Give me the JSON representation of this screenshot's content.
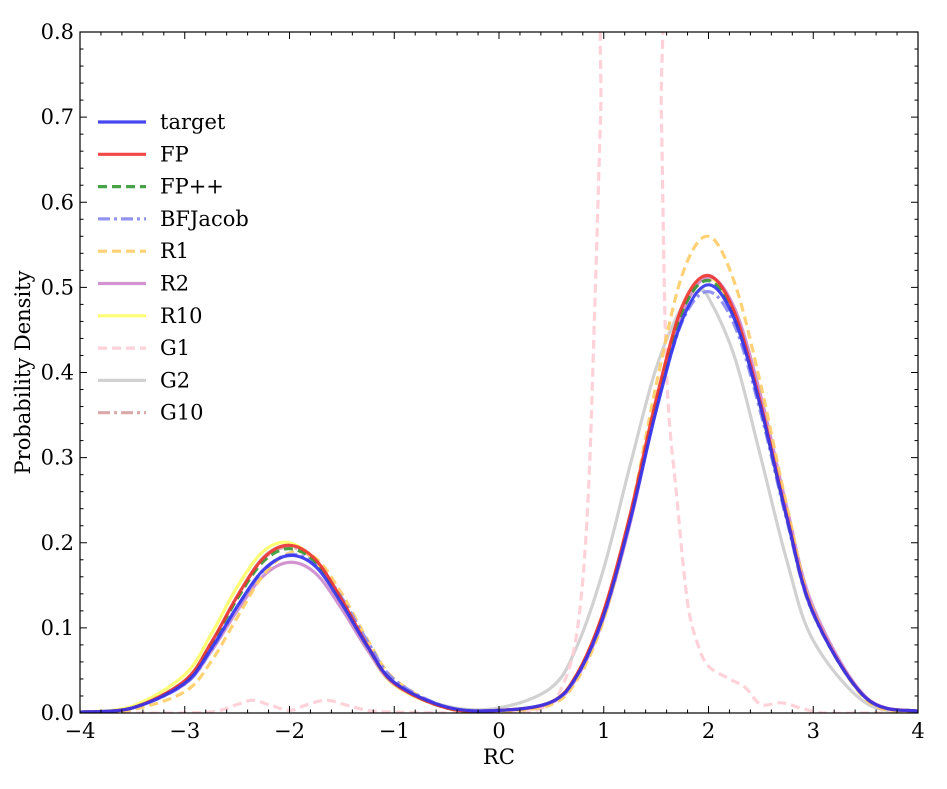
{
  "chart_data": {
    "type": "line",
    "title": "",
    "xlabel": "RC",
    "ylabel": "Probability Density",
    "xlim": [
      -4,
      4
    ],
    "ylim": [
      0,
      0.8
    ],
    "xticks": [
      -4,
      -3,
      -2,
      -1,
      0,
      1,
      2,
      3,
      4
    ],
    "yticks": [
      0.0,
      0.1,
      0.2,
      0.3,
      0.4,
      0.5,
      0.6,
      0.7,
      0.8
    ],
    "xtick_labels": [
      "−4",
      "−3",
      "−2",
      "−1",
      "0",
      "1",
      "2",
      "3",
      "4"
    ],
    "ytick_labels": [
      "0.0",
      "0.1",
      "0.2",
      "0.3",
      "0.4",
      "0.5",
      "0.6",
      "0.7",
      "0.8"
    ],
    "grid": false,
    "legend": "upper-left",
    "series": [
      {
        "name": "target",
        "color": "#3333ee",
        "style": "solid",
        "x": [
          -4.0,
          -3.5,
          -3.0,
          -2.75,
          -2.5,
          -2.25,
          -2.0,
          -1.75,
          -1.5,
          -1.25,
          -1.0,
          -0.5,
          0.0,
          0.5,
          0.75,
          1.0,
          1.25,
          1.5,
          1.75,
          2.0,
          2.25,
          2.5,
          2.75,
          3.0,
          3.5,
          4.0
        ],
        "y": [
          0.001,
          0.006,
          0.035,
          0.075,
          0.125,
          0.168,
          0.185,
          0.172,
          0.128,
          0.077,
          0.036,
          0.007,
          0.003,
          0.013,
          0.045,
          0.115,
          0.225,
          0.355,
          0.462,
          0.503,
          0.462,
          0.358,
          0.228,
          0.117,
          0.018,
          0.002
        ]
      },
      {
        "name": "FP",
        "color": "#ee3333",
        "style": "solid",
        "x": [
          -4.0,
          -3.5,
          -3.0,
          -2.75,
          -2.5,
          -2.25,
          -2.0,
          -1.75,
          -1.5,
          -1.25,
          -1.0,
          -0.5,
          0.0,
          0.5,
          0.75,
          1.0,
          1.25,
          1.5,
          1.75,
          2.0,
          2.25,
          2.5,
          2.75,
          3.0,
          3.5,
          4.0
        ],
        "y": [
          0.001,
          0.006,
          0.038,
          0.082,
          0.137,
          0.182,
          0.197,
          0.18,
          0.133,
          0.078,
          0.035,
          0.006,
          0.003,
          0.013,
          0.047,
          0.12,
          0.232,
          0.368,
          0.478,
          0.514,
          0.47,
          0.362,
          0.23,
          0.118,
          0.018,
          0.002
        ]
      },
      {
        "name": "FP++",
        "color": "#339933",
        "style": "dashed",
        "x": [
          -4.0,
          -3.5,
          -3.0,
          -2.75,
          -2.5,
          -2.25,
          -2.0,
          -1.75,
          -1.5,
          -1.25,
          -1.0,
          -0.5,
          0.0,
          0.5,
          0.75,
          1.0,
          1.25,
          1.5,
          1.75,
          2.0,
          2.25,
          2.5,
          2.75,
          3.0,
          3.5,
          4.0
        ],
        "y": [
          0.001,
          0.006,
          0.037,
          0.08,
          0.134,
          0.178,
          0.193,
          0.177,
          0.131,
          0.077,
          0.035,
          0.006,
          0.003,
          0.013,
          0.046,
          0.118,
          0.229,
          0.363,
          0.472,
          0.508,
          0.465,
          0.358,
          0.228,
          0.117,
          0.018,
          0.002
        ]
      },
      {
        "name": "BFJacob",
        "color": "#8888ee",
        "style": "dashdot",
        "x": [
          -4.0,
          -3.5,
          -3.0,
          -2.75,
          -2.5,
          -2.25,
          -2.0,
          -1.75,
          -1.5,
          -1.25,
          -1.0,
          -0.5,
          0.0,
          0.5,
          0.75,
          1.0,
          1.25,
          1.5,
          1.75,
          2.0,
          2.25,
          2.5,
          2.75,
          3.0,
          3.5,
          4.0
        ],
        "y": [
          0.001,
          0.006,
          0.034,
          0.073,
          0.124,
          0.167,
          0.186,
          0.175,
          0.135,
          0.083,
          0.039,
          0.007,
          0.003,
          0.013,
          0.046,
          0.118,
          0.227,
          0.357,
          0.46,
          0.495,
          0.455,
          0.352,
          0.225,
          0.116,
          0.018,
          0.002
        ]
      },
      {
        "name": "R1",
        "color": "#ffcc66",
        "style": "dashed",
        "x": [
          -4.0,
          -3.5,
          -3.0,
          -2.75,
          -2.5,
          -2.25,
          -2.0,
          -1.75,
          -1.5,
          -1.25,
          -1.0,
          -0.5,
          0.0,
          0.5,
          0.75,
          1.0,
          1.25,
          1.5,
          1.75,
          2.0,
          2.25,
          2.5,
          2.75,
          3.0,
          3.5,
          4.0
        ],
        "y": [
          0.0,
          0.004,
          0.025,
          0.06,
          0.112,
          0.162,
          0.188,
          0.182,
          0.14,
          0.085,
          0.04,
          0.006,
          0.002,
          0.01,
          0.04,
          0.11,
          0.23,
          0.385,
          0.515,
          0.56,
          0.505,
          0.385,
          0.242,
          0.12,
          0.016,
          0.001
        ]
      },
      {
        "name": "R2",
        "color": "#cc88cc",
        "style": "solid",
        "x": [
          -4.0,
          -3.5,
          -3.0,
          -2.75,
          -2.5,
          -2.25,
          -2.0,
          -1.75,
          -1.5,
          -1.25,
          -1.0,
          -0.5,
          0.0,
          0.5,
          0.75,
          1.0,
          1.25,
          1.5,
          1.75,
          2.0,
          2.25,
          2.5,
          2.75,
          3.0,
          3.5,
          4.0
        ],
        "y": [
          0.001,
          0.006,
          0.034,
          0.072,
          0.12,
          0.161,
          0.177,
          0.164,
          0.122,
          0.073,
          0.034,
          0.006,
          0.003,
          0.012,
          0.043,
          0.112,
          0.222,
          0.358,
          0.47,
          0.512,
          0.475,
          0.372,
          0.24,
          0.124,
          0.019,
          0.002
        ]
      },
      {
        "name": "R10",
        "color": "#ffff66",
        "style": "solid",
        "x": [
          -4.0,
          -3.5,
          -3.0,
          -2.75,
          -2.5,
          -2.25,
          -2.0,
          -1.75,
          -1.5,
          -1.25,
          -1.0,
          -0.5,
          0.0,
          0.5,
          0.75,
          1.0,
          1.25,
          1.5,
          1.75,
          2.0,
          2.25,
          2.5,
          2.75,
          3.0,
          3.5,
          4.0
        ],
        "y": [
          0.001,
          0.008,
          0.045,
          0.092,
          0.148,
          0.19,
          0.2,
          0.178,
          0.128,
          0.074,
          0.033,
          0.006,
          0.003,
          0.013,
          0.047,
          0.119,
          0.231,
          0.366,
          0.476,
          0.512,
          0.468,
          0.36,
          0.229,
          0.118,
          0.018,
          0.002
        ]
      },
      {
        "name": "G1",
        "color": "#ffccd5",
        "style": "dashed",
        "x": [
          -4.0,
          -3.0,
          -2.7,
          -2.5,
          -2.35,
          -2.2,
          -2.0,
          -1.85,
          -1.65,
          -1.45,
          -1.25,
          -1.0,
          -0.5,
          0.0,
          0.4,
          0.6,
          0.75,
          0.85,
          0.92,
          0.97,
          1.02,
          1.52,
          1.55,
          1.6,
          1.7,
          1.8,
          1.9,
          2.0,
          2.2,
          2.35,
          2.5,
          2.7,
          2.9,
          3.1,
          3.5,
          4.0
        ],
        "y": [
          0.0,
          0.0,
          0.002,
          0.01,
          0.015,
          0.01,
          0.003,
          0.009,
          0.015,
          0.009,
          0.003,
          0.001,
          0.0,
          0.0,
          0.005,
          0.03,
          0.1,
          0.25,
          0.5,
          0.7,
          0.85,
          0.85,
          0.7,
          0.4,
          0.25,
          0.13,
          0.08,
          0.055,
          0.04,
          0.03,
          0.01,
          0.012,
          0.005,
          0.0,
          0.0,
          0.0
        ]
      },
      {
        "name": "G2",
        "color": "#cccccc",
        "style": "solid",
        "x": [
          -4.0,
          -3.5,
          -3.0,
          -2.75,
          -2.5,
          -2.25,
          -2.0,
          -1.75,
          -1.5,
          -1.25,
          -1.0,
          -0.5,
          0.0,
          0.5,
          0.75,
          1.0,
          1.25,
          1.5,
          1.75,
          1.9,
          2.0,
          2.25,
          2.5,
          2.75,
          3.0,
          3.5,
          4.0
        ],
        "y": [
          0.001,
          0.006,
          0.038,
          0.082,
          0.137,
          0.183,
          0.197,
          0.18,
          0.132,
          0.077,
          0.035,
          0.008,
          0.006,
          0.03,
          0.08,
          0.17,
          0.29,
          0.405,
          0.478,
          0.495,
          0.488,
          0.418,
          0.3,
          0.178,
          0.085,
          0.012,
          0.001
        ]
      },
      {
        "name": "G10",
        "color": "#d4a0a0",
        "style": "dashdot",
        "x": [
          -4.0,
          -3.5,
          -3.0,
          -2.75,
          -2.5,
          -2.25,
          -2.0,
          -1.75,
          -1.5,
          -1.25,
          -1.0,
          -0.5,
          0.0,
          0.5,
          0.75,
          1.0,
          1.25,
          1.5,
          1.75,
          2.0,
          2.25,
          2.5,
          2.75,
          3.0,
          3.5,
          4.0
        ],
        "y": [
          0.001,
          0.006,
          0.038,
          0.082,
          0.136,
          0.181,
          0.195,
          0.178,
          0.131,
          0.077,
          0.035,
          0.006,
          0.003,
          0.013,
          0.047,
          0.12,
          0.231,
          0.365,
          0.474,
          0.51,
          0.467,
          0.36,
          0.229,
          0.118,
          0.018,
          0.002
        ]
      }
    ]
  }
}
